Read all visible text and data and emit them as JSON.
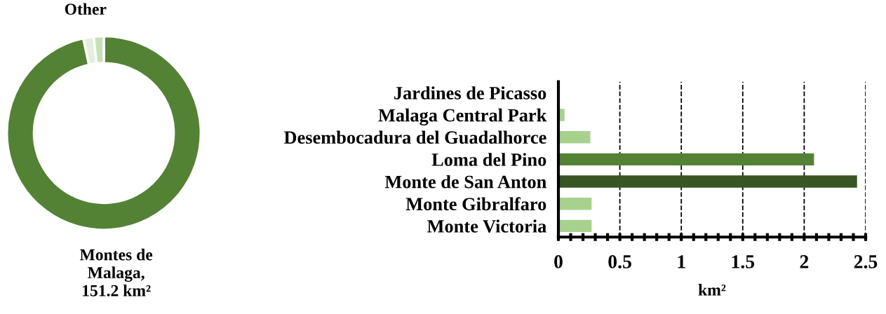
{
  "chart_data": [
    {
      "type": "donut",
      "categories": [
        "Montes de\nMalaga,\n151.2 km²",
        "Other",
        null
      ],
      "values": [
        151.2,
        2.7,
        2.6
      ],
      "colors": [
        "#548235",
        "#e2efda",
        "#c5e0b4"
      ]
    },
    {
      "type": "bar",
      "orientation": "horizontal",
      "xlabel": "km²",
      "categories": [
        "Jardines de Picasso",
        "Malaga Central Park",
        "Desembocadura del Guadalhorce",
        "Loma del Pino",
        "Monte de San Anton",
        "Monte Gibralfaro",
        "Monte Victoria"
      ],
      "values": [
        0,
        0.05,
        0.26,
        2.08,
        2.43,
        0.27,
        0.27
      ],
      "colors": [
        "#a9d18e",
        "#a9d18e",
        "#a9d18e",
        "#548235",
        "#375623",
        "#a9d18e",
        "#a9d18e"
      ],
      "xlim": [
        0,
        2.5
      ],
      "xticks": [
        0,
        {
          "value": 0.1,
          "label": null
        },
        {
          "value": 0.2,
          "label": null
        },
        {
          "value": 0.3,
          "label": null
        },
        {
          "value": 0.4,
          "label": null
        },
        0.5,
        {
          "value": 0.6,
          "label": null
        },
        {
          "value": 0.7,
          "label": null
        },
        {
          "value": 0.8,
          "label": null
        },
        {
          "value": 0.9,
          "label": null
        },
        1,
        {
          "value": 1.1,
          "label": null
        },
        {
          "value": 1.2,
          "label": null
        },
        {
          "value": 1.3,
          "label": null
        },
        {
          "value": 1.4,
          "label": null
        },
        1.5,
        {
          "value": 1.6,
          "label": null
        },
        {
          "value": 1.7,
          "label": null
        },
        {
          "value": 1.8,
          "label": null
        },
        {
          "value": 1.9,
          "label": null
        },
        2,
        {
          "value": 2.1,
          "label": null
        },
        {
          "value": 2.2,
          "label": null
        },
        {
          "value": 2.3,
          "label": null
        },
        {
          "value": 2.4,
          "label": null
        },
        2.5
      ],
      "grid": "x",
      "line_style": "dashed"
    }
  ]
}
